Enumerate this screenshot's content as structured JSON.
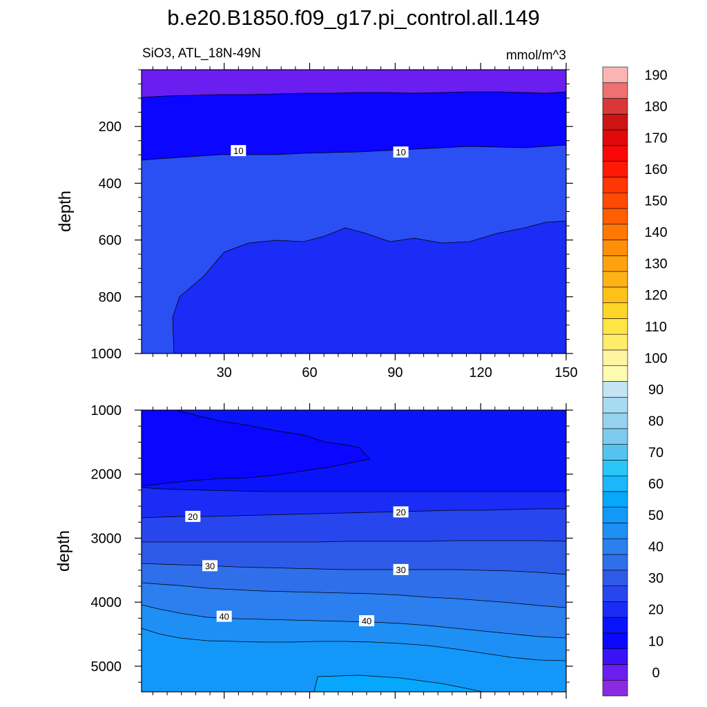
{
  "chart_data": {
    "type": "heatmap",
    "title": "b.e20.B1850.f09_g17.pi_control.all.149",
    "variable_label": "SiO3, ATL_18N-49N",
    "units_label": "mmol/m^3",
    "x": {
      "range": [
        1,
        150
      ],
      "ticks": [
        30,
        60,
        90,
        120,
        150
      ],
      "tick_labels": [
        "30",
        "60",
        "90",
        "120",
        "150"
      ]
    },
    "panels": [
      {
        "name": "upper",
        "ylabel": "depth",
        "y_range": [
          0,
          1000
        ],
        "y_reversed": true,
        "y_ticks": [
          200,
          400,
          600,
          800,
          1000
        ],
        "y_tick_labels": [
          "200",
          "400",
          "600",
          "800",
          "1000"
        ],
        "contour_labels": [
          {
            "text": "10",
            "x": 35,
            "y": 285
          },
          {
            "text": "10",
            "x": 92,
            "y": 290
          }
        ]
      },
      {
        "name": "lower",
        "ylabel": "depth",
        "y_range": [
          1000,
          5400
        ],
        "y_reversed": true,
        "y_ticks": [
          1000,
          2000,
          3000,
          4000,
          5000
        ],
        "y_tick_labels": [
          "1000",
          "2000",
          "3000",
          "4000",
          "5000"
        ],
        "contour_labels": [
          {
            "text": "20",
            "x": 19,
            "y": 2660
          },
          {
            "text": "20",
            "x": 92,
            "y": 2590
          },
          {
            "text": "30",
            "x": 25,
            "y": 3430
          },
          {
            "text": "30",
            "x": 92,
            "y": 3490
          },
          {
            "text": "40",
            "x": 30,
            "y": 4220
          },
          {
            "text": "40",
            "x": 80,
            "y": 4290
          }
        ]
      }
    ],
    "colorbar": {
      "levels": [
        -5,
        0,
        5,
        10,
        15,
        20,
        25,
        30,
        35,
        40,
        45,
        50,
        55,
        60,
        65,
        70,
        75,
        80,
        85,
        90,
        95,
        100,
        105,
        110,
        115,
        120,
        125,
        130,
        135,
        140,
        145,
        150,
        155,
        160,
        165,
        170,
        175,
        180,
        185,
        190,
        195
      ],
      "labels": [
        "0",
        "10",
        "20",
        "30",
        "40",
        "50",
        "60",
        "70",
        "80",
        "90",
        "100",
        "110",
        "120",
        "130",
        "140",
        "150",
        "160",
        "170",
        "180",
        "190"
      ],
      "colors": [
        "#8a2be2",
        "#6a1ef0",
        "#3a12f8",
        "#0a06ff",
        "#0a14fa",
        "#1a2cf6",
        "#2846ee",
        "#2e5ae8",
        "#2f6fea",
        "#2b7fee",
        "#1e8ff4",
        "#1398fa",
        "#05a8fc",
        "#1ab8fa",
        "#2ac6f8",
        "#56c3ef",
        "#7ccbef",
        "#96d2ef",
        "#a8daf1",
        "#c4e4f4",
        "#fdfbb0",
        "#fff5a0",
        "#ffec6a",
        "#ffe545",
        "#ffd527",
        "#ffc119",
        "#ffb215",
        "#ffa20e",
        "#ff8e08",
        "#ff7805",
        "#ff5f02",
        "#ff4a02",
        "#ff3503",
        "#ff1a05",
        "#f80808",
        "#e00a0a",
        "#cc1414",
        "#d83838",
        "#ee7070",
        "#fbb4b4"
      ]
    }
  }
}
